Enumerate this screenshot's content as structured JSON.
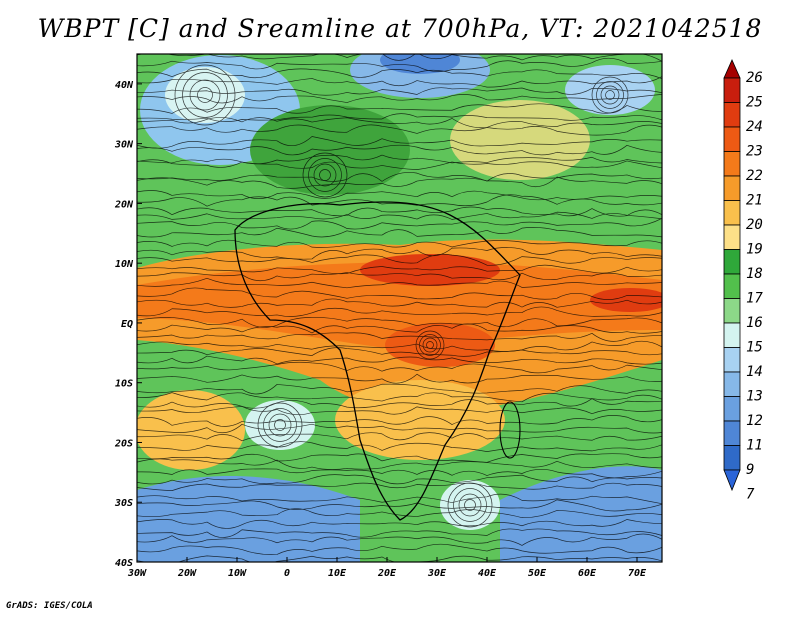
{
  "title": "WBPT [C] and Sreamline at 700hPa, VT: 2021042518",
  "footer": "GrADS: IGES/COLA",
  "map": {
    "lat_labels": [
      "40N",
      "30N",
      "20N",
      "10N",
      "EQ",
      "10S",
      "20S",
      "30S",
      "40S"
    ],
    "lon_labels": [
      "30W",
      "20W",
      "10W",
      "0",
      "10E",
      "20E",
      "30E",
      "40E",
      "50E",
      "60E",
      "70E"
    ],
    "lon_range": [
      -30,
      75
    ],
    "lat_range": [
      -40,
      45
    ]
  },
  "colorbar": {
    "labels": [
      "26",
      "25",
      "24",
      "23",
      "22",
      "21",
      "20",
      "19",
      "18",
      "17",
      "16",
      "15",
      "14",
      "13",
      "12",
      "11",
      "9",
      "7"
    ],
    "colors": [
      "#a50000",
      "#c81e0e",
      "#e03c10",
      "#ed5a14",
      "#f47a1a",
      "#f69b2a",
      "#f9c04c",
      "#fde088",
      "#2fa83a",
      "#52c04c",
      "#8cd888",
      "#d4f4f0",
      "#a8d2f2",
      "#86b8e8",
      "#6aa0e0",
      "#4f86d6",
      "#2f6ac8",
      "#2a64d8"
    ]
  }
}
